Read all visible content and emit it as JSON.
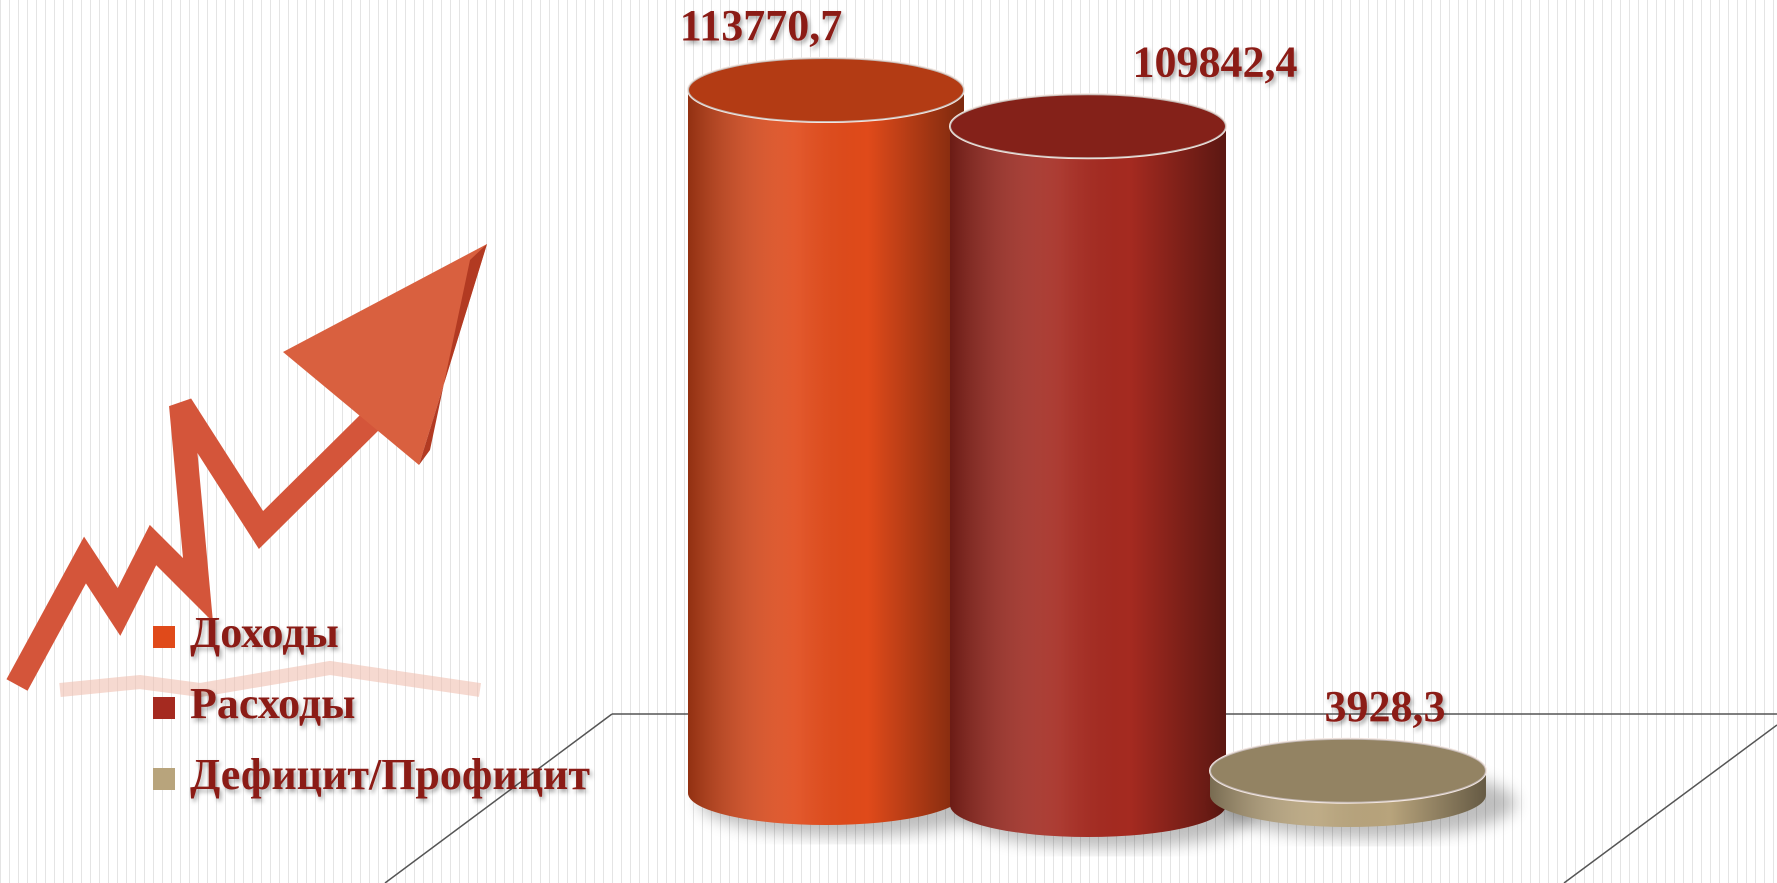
{
  "chart_data": {
    "type": "bar",
    "series": [
      {
        "name": "Доходы",
        "color": "#e04a1a",
        "values": [
          113770.7
        ],
        "value_labels": [
          "113770,7"
        ]
      },
      {
        "name": "Расходы",
        "color": "#a52a20",
        "values": [
          109842.4
        ],
        "value_labels": [
          "109842,4"
        ]
      },
      {
        "name": "Дефицит/Профицит",
        "color": "#b8a47c",
        "values": [
          3928.3
        ],
        "value_labels": [
          "3928,3"
        ]
      }
    ],
    "legend": "left"
  }
}
